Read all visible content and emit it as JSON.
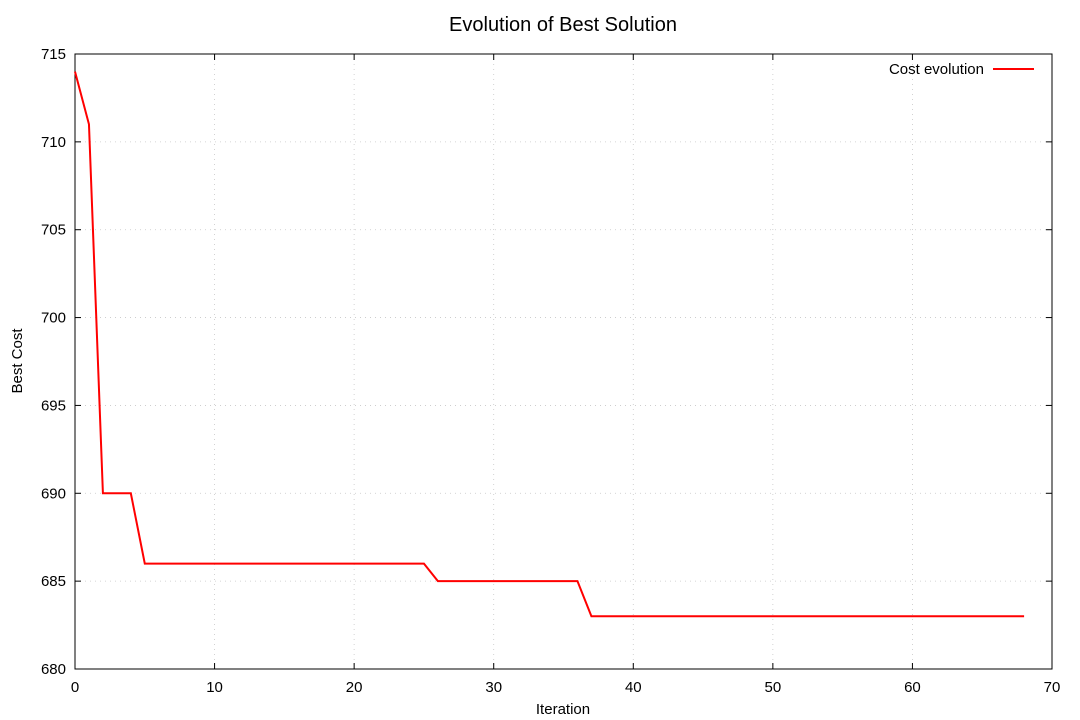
{
  "chart_data": {
    "type": "line",
    "title": "Evolution of Best Solution",
    "xlabel": "Iteration",
    "ylabel": "Best Cost",
    "xlim": [
      0,
      70
    ],
    "ylim": [
      680,
      715
    ],
    "xticks": [
      0,
      10,
      20,
      30,
      40,
      50,
      60,
      70
    ],
    "yticks": [
      680,
      685,
      690,
      695,
      700,
      705,
      710,
      715
    ],
    "grid": true,
    "legend_position": "top-right",
    "series": [
      {
        "name": "Cost evolution",
        "color": "#ff0000",
        "x": [
          0,
          1,
          2,
          3,
          4,
          5,
          6,
          7,
          8,
          9,
          10,
          11,
          12,
          13,
          14,
          15,
          16,
          17,
          18,
          19,
          20,
          21,
          22,
          23,
          24,
          25,
          26,
          27,
          28,
          29,
          30,
          31,
          32,
          33,
          34,
          35,
          36,
          37,
          38,
          39,
          40,
          41,
          42,
          43,
          44,
          45,
          46,
          47,
          48,
          49,
          50,
          51,
          52,
          53,
          54,
          55,
          56,
          57,
          58,
          59,
          60,
          61,
          62,
          63,
          64,
          65,
          66,
          67,
          68
        ],
        "y": [
          714,
          711,
          690,
          690,
          690,
          686,
          686,
          686,
          686,
          686,
          686,
          686,
          686,
          686,
          686,
          686,
          686,
          686,
          686,
          686,
          686,
          686,
          686,
          686,
          686,
          686,
          685,
          685,
          685,
          685,
          685,
          685,
          685,
          685,
          685,
          685,
          685,
          683,
          683,
          683,
          683,
          683,
          683,
          683,
          683,
          683,
          683,
          683,
          683,
          683,
          683,
          683,
          683,
          683,
          683,
          683,
          683,
          683,
          683,
          683,
          683,
          683,
          683,
          683,
          683,
          683,
          683,
          683,
          683
        ]
      }
    ]
  }
}
